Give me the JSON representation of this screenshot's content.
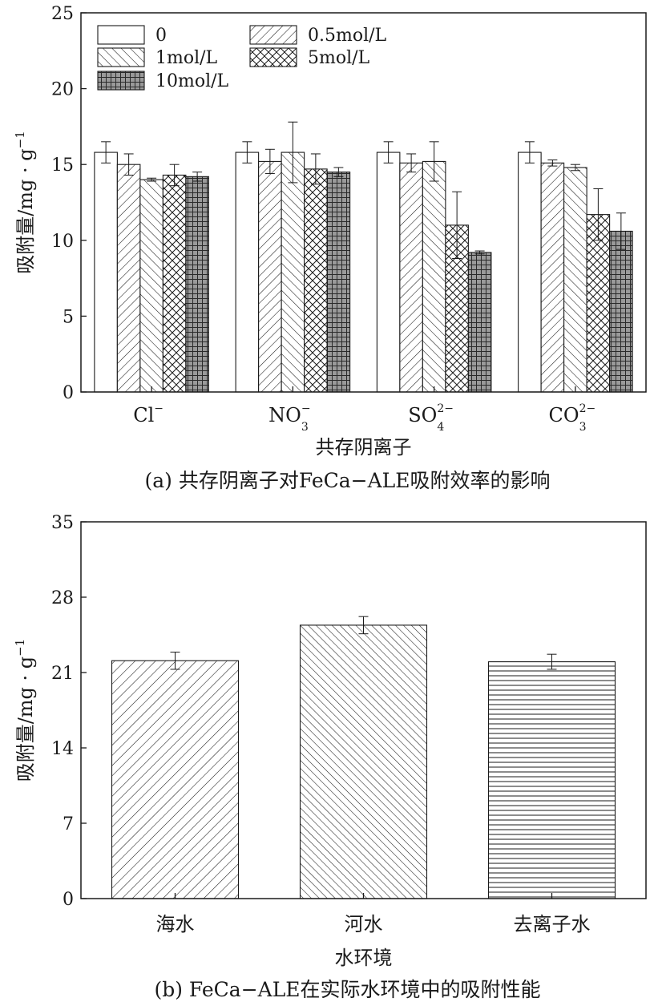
{
  "chart_data": [
    {
      "type": "bar",
      "caption": "(a) 共存阴离子对FeCa−ALE吸附效率的影响",
      "xlabel": "共存阴离子",
      "ylabel": "吸附量/mg · g",
      "ylabel_superscript": "−1",
      "ylim": [
        0,
        25
      ],
      "yticks": [
        0,
        5,
        10,
        15,
        20,
        25
      ],
      "grid": false,
      "legend_position": "top-left",
      "categories": [
        {
          "base": "Cl",
          "sup": "−",
          "sub": ""
        },
        {
          "base": "NO",
          "sup": "−",
          "sub": "3"
        },
        {
          "base": "SO",
          "sup": "2−",
          "sub": "4"
        },
        {
          "base": "CO",
          "sup": "2−",
          "sub": "3"
        }
      ],
      "series": [
        {
          "name": "0",
          "pattern": "none",
          "values": [
            15.8,
            15.8,
            15.8,
            15.8
          ],
          "errors": [
            0.7,
            0.7,
            0.7,
            0.7
          ]
        },
        {
          "name": "0.5mol/L",
          "pattern": "diag-up",
          "values": [
            15.0,
            15.2,
            15.1,
            15.1
          ],
          "errors": [
            0.7,
            0.8,
            0.6,
            0.2
          ]
        },
        {
          "name": "1mol/L",
          "pattern": "diag-down",
          "values": [
            14.0,
            15.8,
            15.2,
            14.8
          ],
          "errors": [
            0.1,
            2.0,
            1.3,
            0.2
          ]
        },
        {
          "name": "5mol/L",
          "pattern": "crosshatch",
          "values": [
            14.3,
            14.7,
            11.0,
            11.7
          ],
          "errors": [
            0.7,
            1.0,
            2.2,
            1.7
          ]
        },
        {
          "name": "10mol/L",
          "pattern": "grid",
          "values": [
            14.2,
            14.5,
            9.2,
            10.6
          ],
          "errors": [
            0.3,
            0.3,
            0.1,
            1.2
          ]
        }
      ]
    },
    {
      "type": "bar",
      "caption": "(b) FeCa−ALE在实际水环境中的吸附性能",
      "xlabel": "水环境",
      "ylabel": "吸附量/mg · g",
      "ylabel_superscript": "−1",
      "ylim": [
        0,
        35
      ],
      "yticks": [
        0,
        7,
        14,
        21,
        28,
        35
      ],
      "grid": false,
      "categories": [
        "海水",
        "河水",
        "去离子水"
      ],
      "patterns": [
        "diag-up",
        "diag-down",
        "horizontal"
      ],
      "values": [
        22.1,
        25.4,
        22.0
      ],
      "errors": [
        0.8,
        0.8,
        0.7
      ]
    }
  ]
}
